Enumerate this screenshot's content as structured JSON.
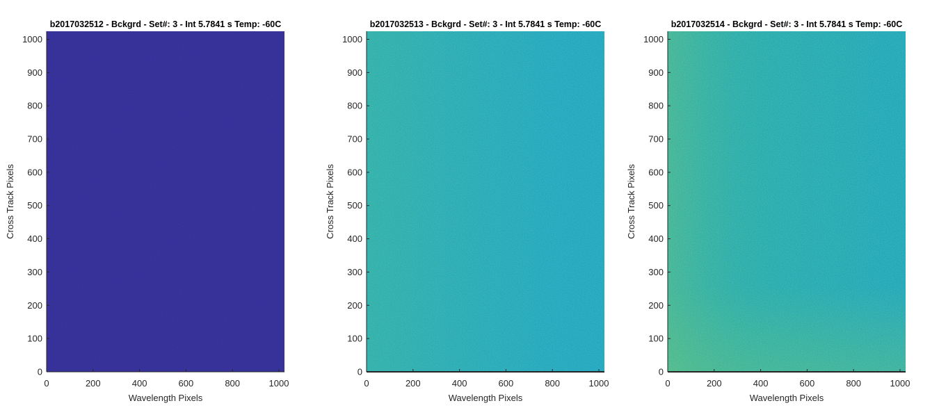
{
  "chart_data": [
    {
      "type": "heatmap",
      "title": "b2017032512 - Bckgrd - Set#: 3 - Int 5.7841 s Temp: -60C",
      "xlabel": "Wavelength Pixels",
      "ylabel": "Cross Track Pixels",
      "xlim": [
        0,
        1024
      ],
      "ylim": [
        0,
        1024
      ],
      "xticks": [
        0,
        200,
        400,
        600,
        800,
        1000
      ],
      "yticks": [
        0,
        100,
        200,
        300,
        400,
        500,
        600,
        700,
        800,
        900,
        1000
      ],
      "base_color": "#35309a",
      "grid": false,
      "colorbar": false
    },
    {
      "type": "heatmap",
      "title": "b2017032513 - Bckgrd - Set#: 3 - Int 5.7841 s Temp: -60C",
      "xlabel": "Wavelength Pixels",
      "ylabel": "Cross Track Pixels",
      "xlim": [
        0,
        1024
      ],
      "ylim": [
        0,
        1024
      ],
      "xticks": [
        0,
        200,
        400,
        600,
        800,
        1000
      ],
      "yticks": [
        0,
        100,
        200,
        300,
        400,
        500,
        600,
        700,
        800,
        900,
        1000
      ],
      "base_color": "#1ea9bf",
      "grid": false,
      "colorbar": false
    },
    {
      "type": "heatmap",
      "title": "b2017032514 - Bckgrd - Set#: 3 - Int 5.7841 s Temp: -60C",
      "xlabel": "Wavelength Pixels",
      "ylabel": "Cross Track Pixels",
      "xlim": [
        0,
        1024
      ],
      "ylim": [
        0,
        1024
      ],
      "xticks": [
        0,
        200,
        400,
        600,
        800,
        1000
      ],
      "yticks": [
        0,
        100,
        200,
        300,
        400,
        500,
        600,
        700,
        800,
        900,
        1000
      ],
      "base_color": "#21aab5",
      "grid": false,
      "colorbar": false
    }
  ]
}
